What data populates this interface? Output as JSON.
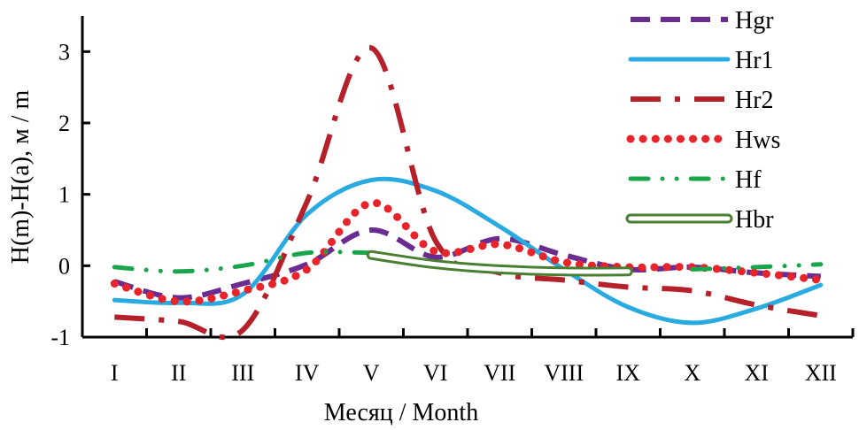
{
  "chart_data": {
    "type": "line",
    "title": "",
    "xlabel": "Месяц / Month",
    "ylabel": "H(m)-H(a), м / m",
    "categories": [
      "I",
      "II",
      "III",
      "IV",
      "V",
      "VI",
      "VII",
      "VIII",
      "IX",
      "X",
      "XI",
      "XII"
    ],
    "ylim": [
      -1,
      3.5
    ],
    "yticks": [
      -1,
      0,
      1,
      2,
      3
    ],
    "grid": false,
    "legend_position": "top-right",
    "series": [
      {
        "name": "Hgr",
        "color": "#6a2c91",
        "style": "dashed",
        "values": [
          -0.22,
          -0.45,
          -0.25,
          0.02,
          0.5,
          0.12,
          0.38,
          0.15,
          -0.05,
          -0.02,
          -0.1,
          -0.15
        ]
      },
      {
        "name": "Hr1",
        "color": "#29aae1",
        "style": "solid",
        "values": [
          -0.48,
          -0.52,
          -0.4,
          0.72,
          1.2,
          1.05,
          0.55,
          -0.05,
          -0.58,
          -0.8,
          -0.6,
          -0.27
        ]
      },
      {
        "name": "Hr2",
        "color": "#b5202a",
        "style": "dashdot",
        "values": [
          -0.72,
          -0.78,
          -0.9,
          0.9,
          3.05,
          0.35,
          -0.1,
          -0.2,
          -0.3,
          -0.35,
          -0.55,
          -0.7
        ]
      },
      {
        "name": "Hws",
        "color": "#e8232a",
        "style": "dotted",
        "values": [
          -0.25,
          -0.5,
          -0.35,
          -0.05,
          0.88,
          0.2,
          0.3,
          0.05,
          -0.02,
          -0.02,
          -0.1,
          -0.2
        ]
      },
      {
        "name": "Hf",
        "color": "#1aa54b",
        "style": "dashdotdot",
        "values": [
          -0.02,
          -0.08,
          0.0,
          0.18,
          0.18,
          null,
          null,
          null,
          null,
          -0.05,
          -0.02,
          0.02
        ]
      },
      {
        "name": "Hbr",
        "color": "#4a7f32",
        "style": "double",
        "values": [
          null,
          null,
          null,
          null,
          0.15,
          0.02,
          -0.05,
          -0.08,
          -0.08,
          null,
          null,
          null
        ]
      }
    ]
  }
}
